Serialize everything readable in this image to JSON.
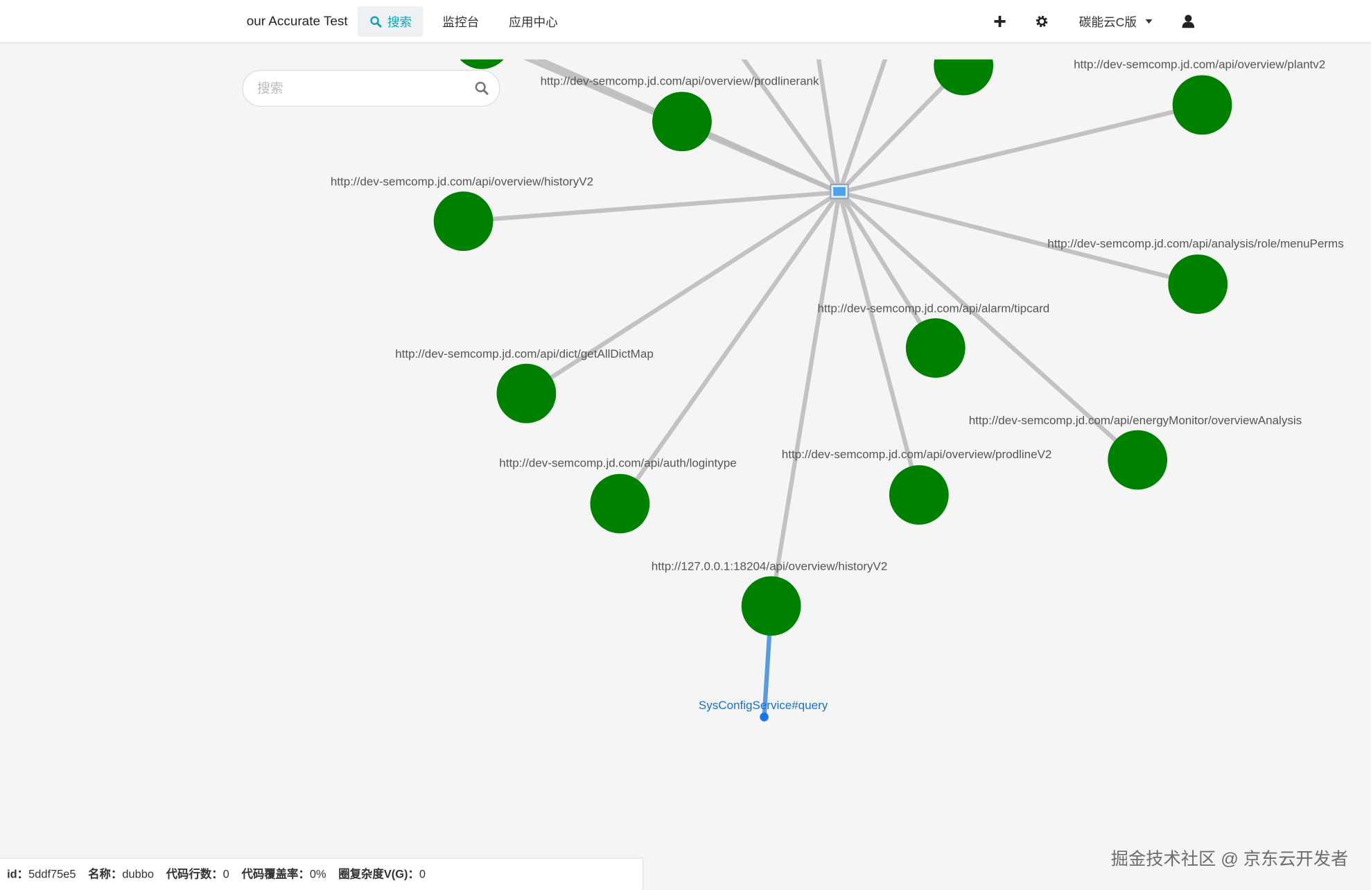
{
  "navbar": {
    "brand": "our Accurate Test",
    "items": [
      "搜索",
      "监控台",
      "应用中心"
    ],
    "workspace": "碳能云C版"
  },
  "search": {
    "placeholder": "搜索"
  },
  "graph": {
    "nodes": [
      {
        "label": "http://dev-semcomp.jd.com/api/overview/prodlinerank"
      },
      {
        "label": "http://dev-semcomp.jd.com/api/overview/plantv2"
      },
      {
        "label": "http://dev-semcomp.jd.com/api/overview/historyV2"
      },
      {
        "label": "http://dev-semcomp.jd.com/api/analysis/role/menuPerms"
      },
      {
        "label": "http://dev-semcomp.jd.com/api/alarm/tipcard"
      },
      {
        "label": "http://dev-semcomp.jd.com/api/dict/getAllDictMap"
      },
      {
        "label": "http://dev-semcomp.jd.com/api/energyMonitor/overviewAnalysis"
      },
      {
        "label": "http://dev-semcomp.jd.com/api/auth/logintype"
      },
      {
        "label": "http://dev-semcomp.jd.com/api/overview/prodlineV2"
      },
      {
        "label": "http://127.0.0.1:18204/api/overview/historyV2"
      }
    ],
    "leaf": {
      "label": "SysConfigService#query"
    }
  },
  "status": {
    "fields": [
      {
        "label": "id：",
        "value": "5ddf75e5"
      },
      {
        "label": "名称：",
        "value": "dubbo"
      },
      {
        "label": "代码行数：",
        "value": "0"
      },
      {
        "label": "代码覆盖率：",
        "value": "0%"
      },
      {
        "label": "圈复杂度V(G)：",
        "value": "0"
      }
    ]
  },
  "watermark": "掘金技术社区 @ 京东云开发者"
}
